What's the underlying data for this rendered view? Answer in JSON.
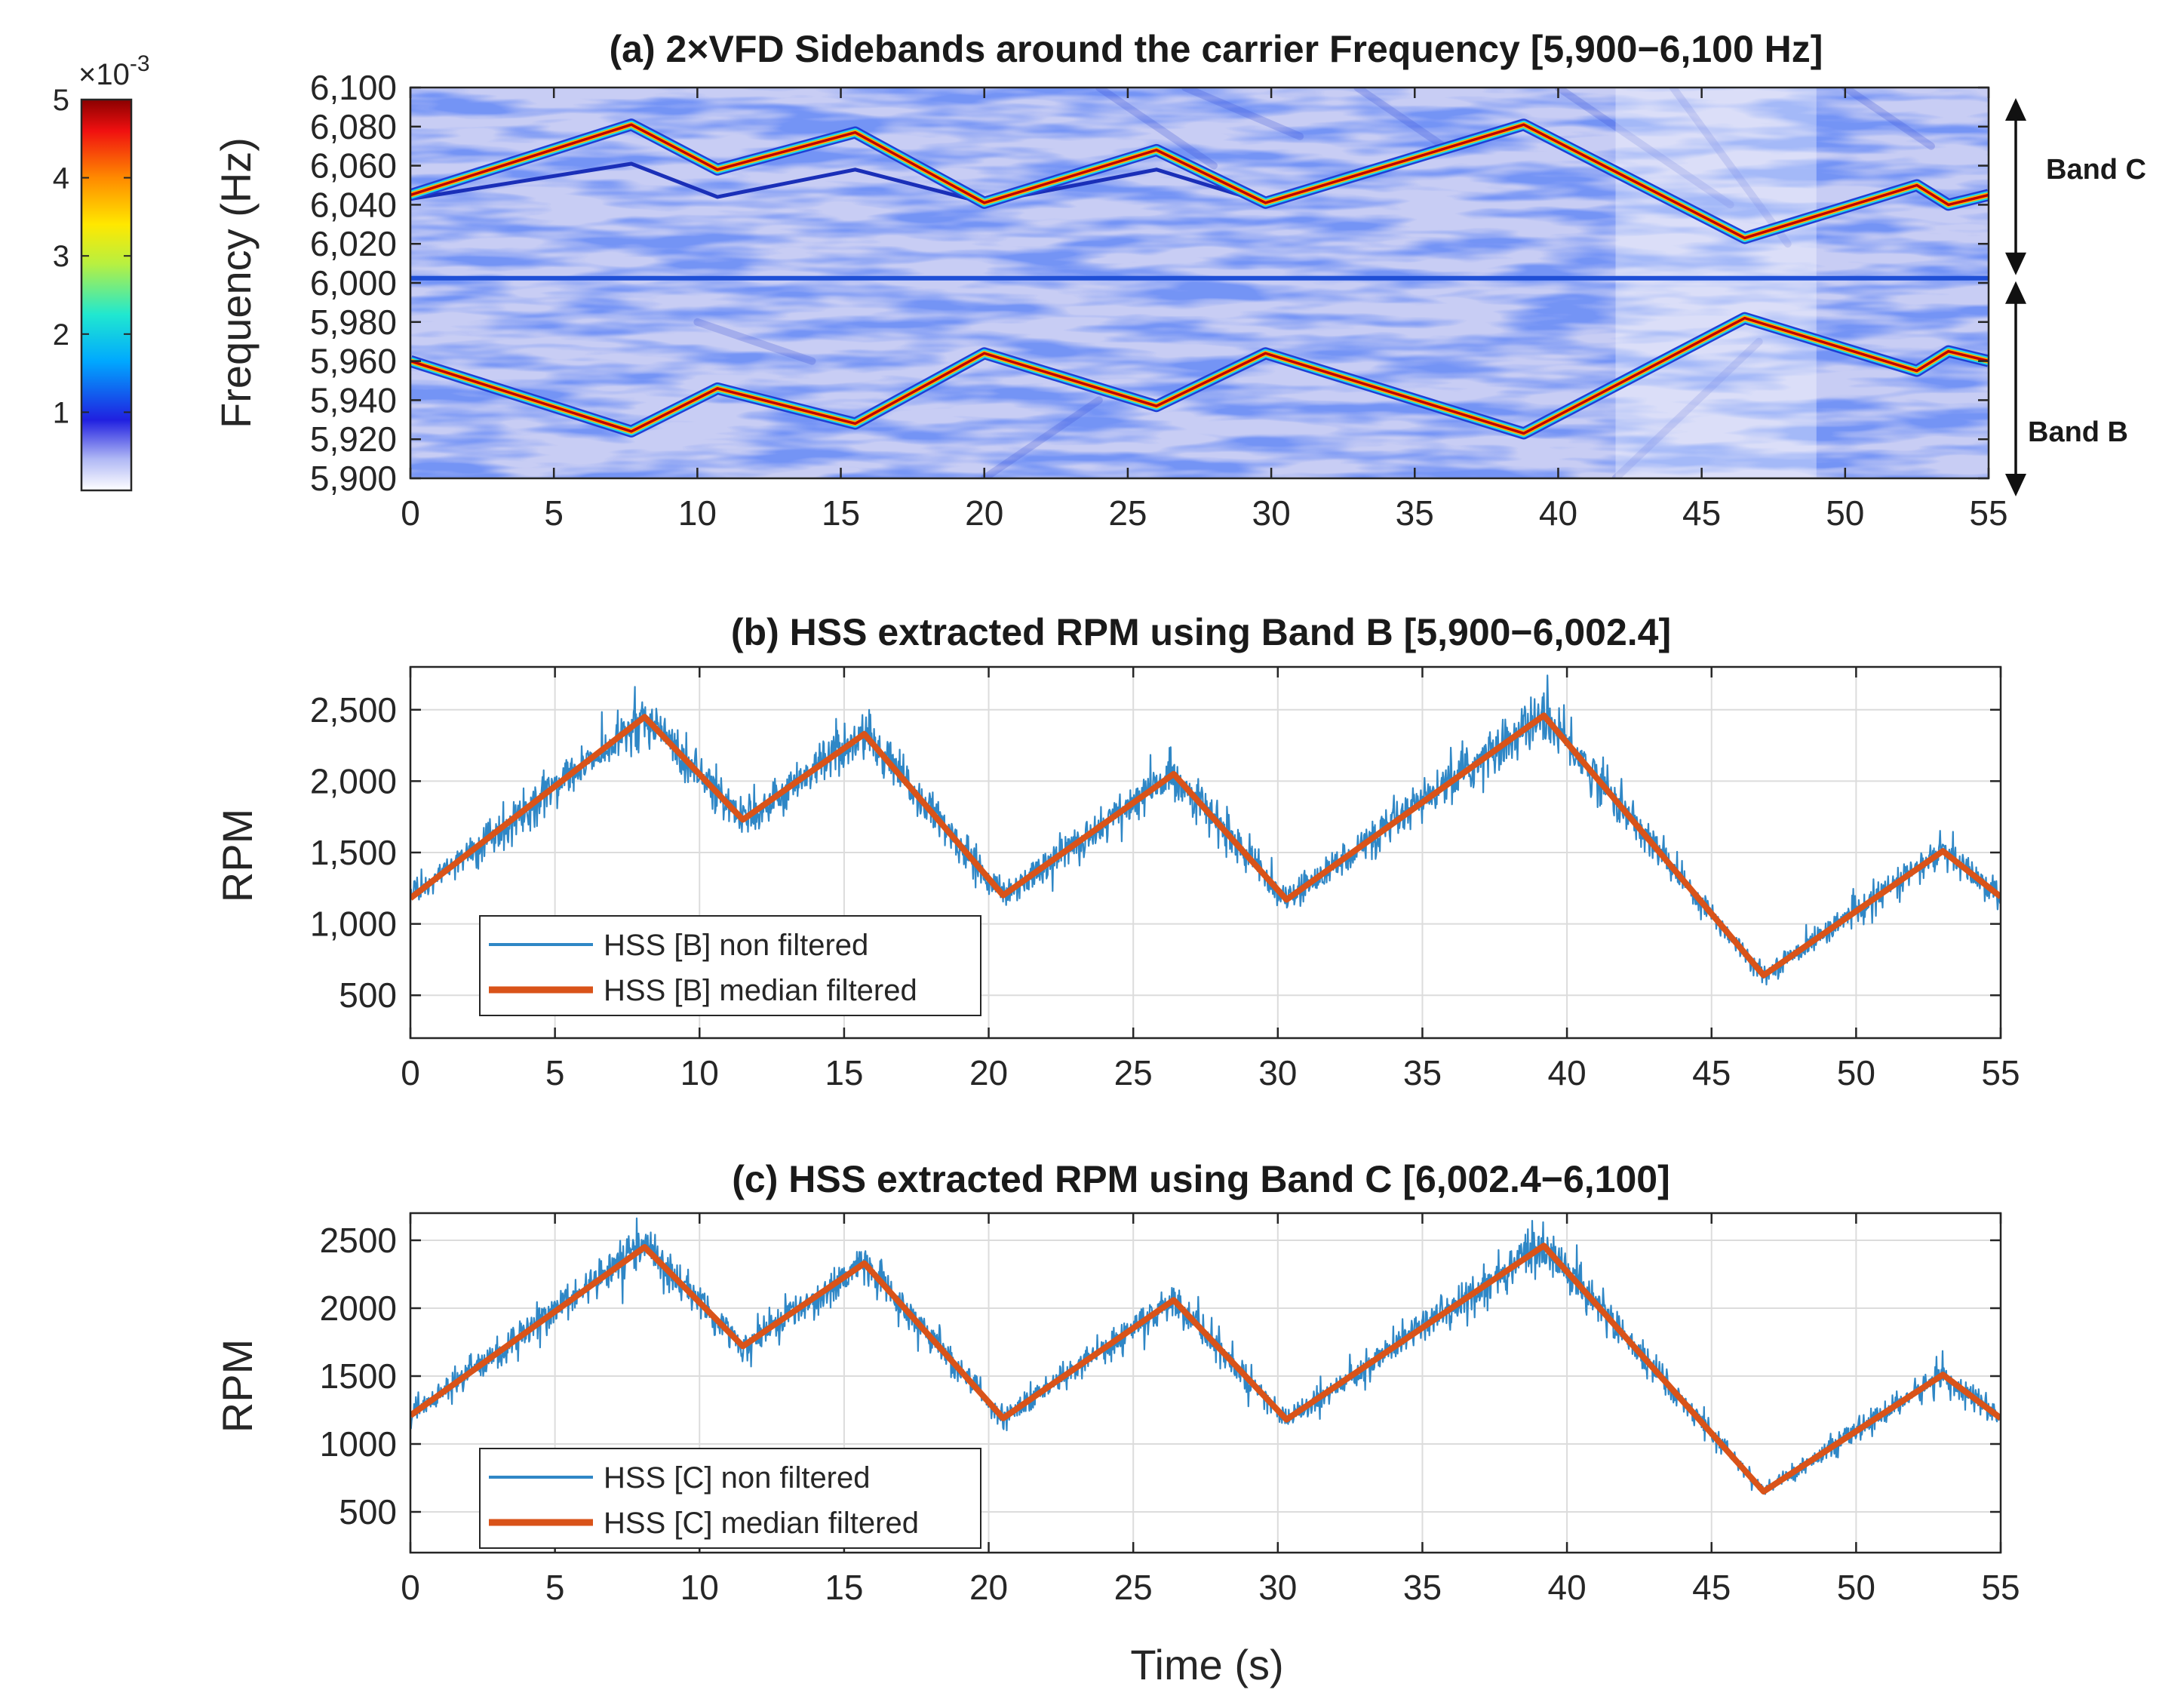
{
  "colors": {
    "noisy": "#2f87c6",
    "filtered": "#d95319",
    "grid": "#dcdcdc",
    "axis": "#262626",
    "carrier_line": "#1f4fd6"
  },
  "chart_data": [
    {
      "id": "a",
      "type": "heatmap",
      "title": "(a) 2×VFD Sidebands around the carrier Frequency [5,900−6,100 Hz]",
      "xlabel": "",
      "ylabel": "Frequency (Hz)",
      "xlim": [
        0,
        55
      ],
      "ylim": [
        5900,
        6100
      ],
      "xticks": [
        0,
        5,
        10,
        15,
        20,
        25,
        30,
        35,
        40,
        45,
        50,
        55
      ],
      "xtick_labels": [
        "0",
        "5",
        "10",
        "15",
        "20",
        "25",
        "30",
        "35",
        "40",
        "45",
        "50",
        "55"
      ],
      "yticks": [
        5900,
        5920,
        5940,
        5960,
        5980,
        6000,
        6020,
        6040,
        6060,
        6080,
        6100
      ],
      "ytick_labels": [
        "5,900",
        "5,920",
        "5,940",
        "5,960",
        "5,980",
        "6,000",
        "6,020",
        "6,040",
        "6,060",
        "6,080",
        "6,100"
      ],
      "colorbar": {
        "exponent_label": "×10",
        "exponent_power": "-3",
        "range": [
          0,
          5
        ],
        "ticks": [
          1,
          2,
          3,
          4,
          5
        ],
        "tick_labels": [
          "1",
          "2",
          "3",
          "4",
          "5"
        ],
        "colormap": "jet-white"
      },
      "carrier_frequency": 6002.4,
      "band_c": {
        "label": "Band C",
        "main": {
          "t": [
            0,
            7.7,
            10.7,
            15.5,
            20,
            26,
            29.8,
            38.8,
            46.5,
            52.5,
            53.6,
            55
          ],
          "f": [
            6045,
            6081,
            6058,
            6077,
            6041,
            6068,
            6041,
            6081,
            6023,
            6050,
            6040,
            6045
          ]
        },
        "secondary": {
          "t": [
            0,
            7.7,
            10.7,
            15.5,
            20,
            26,
            29.8
          ],
          "f": [
            6043,
            6061,
            6044,
            6058,
            6041,
            6058,
            6041
          ]
        }
      },
      "band_b": {
        "label": "Band B",
        "main": {
          "t": [
            0,
            7.7,
            10.7,
            15.5,
            20,
            26,
            29.8,
            38.8,
            46.5,
            52.5,
            53.6,
            55
          ],
          "f": [
            5960,
            5924,
            5946,
            5928,
            5964,
            5937,
            5964,
            5923,
            5982,
            5955,
            5965,
            5960
          ]
        }
      }
    },
    {
      "id": "b",
      "type": "line",
      "title": "(b) HSS extracted RPM using Band B [5,900−6,002.4]",
      "xlabel": "",
      "ylabel": "RPM",
      "xlim": [
        0,
        55
      ],
      "ylim": [
        200,
        2800
      ],
      "xticks": [
        0,
        5,
        10,
        15,
        20,
        25,
        30,
        35,
        40,
        45,
        50,
        55
      ],
      "xtick_labels": [
        "0",
        "5",
        "10",
        "15",
        "20",
        "25",
        "30",
        "35",
        "40",
        "45",
        "50",
        "55"
      ],
      "yticks": [
        500,
        1000,
        1500,
        2000,
        2500
      ],
      "ytick_labels": [
        "500",
        "1,000",
        "1,500",
        "2,000",
        "2,500"
      ],
      "grid": true,
      "legend_position": "lower-left",
      "series": [
        {
          "name": "HSS [B] non filtered",
          "style": "noisy",
          "x": [
            0,
            8.1,
            11.5,
            15.7,
            20.5,
            26.4,
            30.3,
            39.2,
            46.8,
            53,
            55
          ],
          "y": [
            1180,
            2450,
            1730,
            2330,
            1200,
            2050,
            1170,
            2460,
            640,
            1510,
            1190
          ]
        },
        {
          "name": "HSS [B] median filtered",
          "style": "filtered",
          "x": [
            0,
            8.1,
            11.5,
            15.7,
            20.5,
            26.4,
            30.3,
            39.2,
            46.8,
            53,
            55
          ],
          "y": [
            1180,
            2450,
            1730,
            2330,
            1200,
            2050,
            1170,
            2460,
            640,
            1510,
            1190
          ]
        }
      ]
    },
    {
      "id": "c",
      "type": "line",
      "title": "(c) HSS extracted RPM using Band C [6,002.4−6,100]",
      "xlabel": "Time (s)",
      "ylabel": "RPM",
      "xlim": [
        0,
        55
      ],
      "ylim": [
        200,
        2700
      ],
      "xticks": [
        0,
        5,
        10,
        15,
        20,
        25,
        30,
        35,
        40,
        45,
        50,
        55
      ],
      "xtick_labels": [
        "0",
        "5",
        "10",
        "15",
        "20",
        "25",
        "30",
        "35",
        "40",
        "45",
        "50",
        "55"
      ],
      "yticks": [
        500,
        1000,
        1500,
        2000,
        2500
      ],
      "ytick_labels": [
        "500",
        "1000",
        "1500",
        "2000",
        "2500"
      ],
      "grid": true,
      "legend_position": "lower-left",
      "series": [
        {
          "name": "HSS [C] non filtered",
          "style": "noisy",
          "x": [
            0,
            8.1,
            11.5,
            15.7,
            20.5,
            26.4,
            30.3,
            39.2,
            46.8,
            53,
            55
          ],
          "y": [
            1210,
            2450,
            1720,
            2330,
            1190,
            2060,
            1180,
            2460,
            650,
            1510,
            1190
          ]
        },
        {
          "name": "HSS [C] median filtered",
          "style": "filtered",
          "x": [
            0,
            8.1,
            11.5,
            15.7,
            20.5,
            26.4,
            30.3,
            39.2,
            46.8,
            53,
            55
          ],
          "y": [
            1210,
            2450,
            1720,
            2330,
            1190,
            2060,
            1180,
            2460,
            650,
            1510,
            1190
          ]
        }
      ]
    }
  ]
}
